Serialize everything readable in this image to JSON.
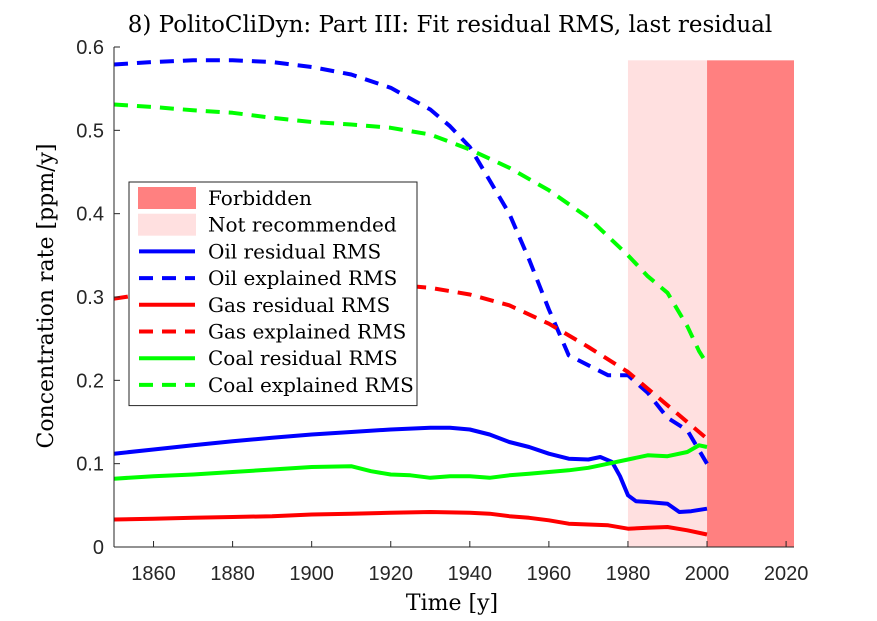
{
  "chart_data": {
    "type": "line",
    "title": "8) PolitoCliDyn: Part III: Fit residual RMS, last residual",
    "xlabel": "Time [y]",
    "ylabel": "Concentration rate [ppm/y]",
    "xlim": [
      1850,
      2022
    ],
    "ylim": [
      0,
      0.6
    ],
    "xticks": [
      1860,
      1880,
      1900,
      1920,
      1940,
      1960,
      1980,
      2000,
      2020
    ],
    "yticks": [
      0,
      0.1,
      0.2,
      0.3,
      0.4,
      0.5,
      0.6
    ],
    "grid": false,
    "legend_position": "left",
    "regions": [
      {
        "name": "Forbidden",
        "x": [
          2000,
          2022
        ],
        "y": [
          0,
          0.584
        ],
        "color": "#ff8080"
      },
      {
        "name": "Not recommended",
        "x": [
          1980,
          2000
        ],
        "y": [
          0,
          0.584
        ],
        "color": "#ffe0e0"
      }
    ],
    "series": [
      {
        "name": "Oil residual RMS",
        "color": "#0000ff",
        "dash": false,
        "x": [
          1850,
          1860,
          1870,
          1880,
          1890,
          1900,
          1910,
          1920,
          1930,
          1935,
          1940,
          1945,
          1950,
          1955,
          1960,
          1965,
          1970,
          1973,
          1976,
          1978,
          1980,
          1982,
          1985,
          1990,
          1993,
          1996,
          2000
        ],
        "y": [
          0.112,
          0.117,
          0.122,
          0.127,
          0.131,
          0.135,
          0.138,
          0.141,
          0.143,
          0.143,
          0.141,
          0.135,
          0.126,
          0.12,
          0.112,
          0.106,
          0.105,
          0.108,
          0.102,
          0.085,
          0.062,
          0.055,
          0.054,
          0.052,
          0.042,
          0.043,
          0.046
        ]
      },
      {
        "name": "Oil explained RMS",
        "color": "#0000ff",
        "dash": true,
        "x": [
          1850,
          1860,
          1870,
          1880,
          1890,
          1900,
          1910,
          1920,
          1930,
          1935,
          1940,
          1945,
          1950,
          1955,
          1960,
          1965,
          1970,
          1975,
          1980,
          1985,
          1990,
          1995,
          2000
        ],
        "y": [
          0.579,
          0.582,
          0.584,
          0.584,
          0.582,
          0.576,
          0.567,
          0.551,
          0.525,
          0.505,
          0.48,
          0.44,
          0.4,
          0.345,
          0.285,
          0.23,
          0.218,
          0.206,
          0.206,
          0.185,
          0.155,
          0.14,
          0.1
        ]
      },
      {
        "name": "Gas residual RMS",
        "color": "#ff0000",
        "dash": false,
        "x": [
          1850,
          1860,
          1870,
          1880,
          1890,
          1900,
          1910,
          1920,
          1930,
          1940,
          1945,
          1950,
          1955,
          1960,
          1965,
          1970,
          1975,
          1980,
          1985,
          1990,
          1995,
          2000
        ],
        "y": [
          0.033,
          0.034,
          0.035,
          0.036,
          0.037,
          0.039,
          0.04,
          0.041,
          0.042,
          0.041,
          0.04,
          0.037,
          0.035,
          0.032,
          0.028,
          0.027,
          0.026,
          0.022,
          0.023,
          0.024,
          0.02,
          0.015
        ]
      },
      {
        "name": "Gas explained RMS",
        "color": "#ff0000",
        "dash": true,
        "x": [
          1850,
          1860,
          1870,
          1880,
          1890,
          1900,
          1910,
          1920,
          1930,
          1940,
          1950,
          1960,
          1970,
          1980,
          1990,
          2000
        ],
        "y": [
          0.298,
          0.305,
          0.31,
          0.313,
          0.315,
          0.316,
          0.316,
          0.315,
          0.311,
          0.303,
          0.29,
          0.268,
          0.24,
          0.21,
          0.17,
          0.13
        ]
      },
      {
        "name": "Coal residual RMS",
        "color": "#00ff00",
        "dash": false,
        "x": [
          1850,
          1860,
          1870,
          1880,
          1890,
          1900,
          1910,
          1915,
          1920,
          1925,
          1930,
          1935,
          1940,
          1945,
          1950,
          1955,
          1960,
          1965,
          1970,
          1975,
          1980,
          1985,
          1990,
          1995,
          1998,
          2000
        ],
        "y": [
          0.082,
          0.085,
          0.087,
          0.09,
          0.093,
          0.096,
          0.097,
          0.091,
          0.087,
          0.086,
          0.083,
          0.085,
          0.085,
          0.083,
          0.086,
          0.088,
          0.09,
          0.092,
          0.095,
          0.1,
          0.105,
          0.11,
          0.109,
          0.114,
          0.122,
          0.12
        ]
      },
      {
        "name": "Coal explained RMS",
        "color": "#00ff00",
        "dash": true,
        "x": [
          1850,
          1860,
          1870,
          1880,
          1890,
          1900,
          1910,
          1920,
          1930,
          1940,
          1950,
          1960,
          1970,
          1980,
          1985,
          1990,
          1995,
          1998,
          2000
        ],
        "y": [
          0.531,
          0.528,
          0.524,
          0.521,
          0.515,
          0.51,
          0.507,
          0.503,
          0.495,
          0.477,
          0.455,
          0.428,
          0.395,
          0.35,
          0.325,
          0.305,
          0.265,
          0.235,
          0.22
        ]
      }
    ]
  }
}
